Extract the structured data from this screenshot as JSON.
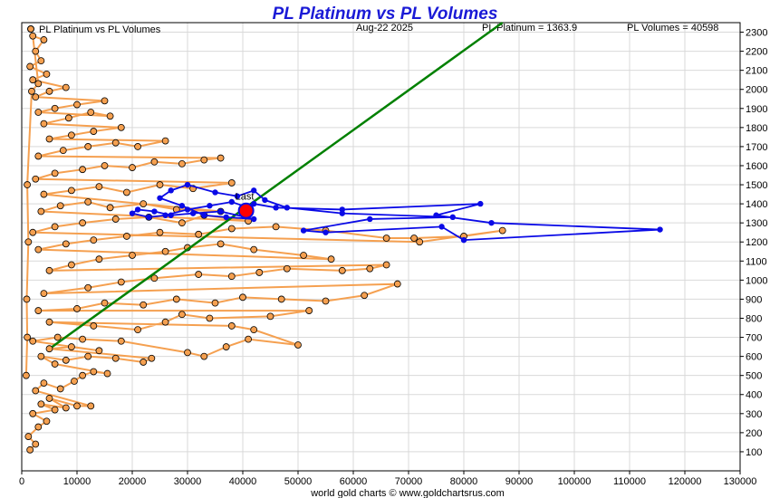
{
  "chart_data": {
    "type": "scatter",
    "title": "PL Platinum vs PL Volumes",
    "legend": {
      "label": "PL Platinum vs PL Volumes",
      "placement": "top-left"
    },
    "header": {
      "date": "Aug-22  2025",
      "platinum": "PL Platinum = 1363.9",
      "volumes": "PL Volumes = 40598"
    },
    "footer": "world gold charts © www.goldchartsrus.com",
    "last_label": "Last",
    "xlim": [
      0,
      130000
    ],
    "ylim": [
      0,
      2350
    ],
    "x_ticks": [
      "0",
      "10000",
      "20000",
      "30000",
      "40000",
      "50000",
      "60000",
      "70000",
      "80000",
      "90000",
      "100000",
      "110000",
      "120000",
      "130000"
    ],
    "y_ticks": [
      "100",
      "200",
      "300",
      "400",
      "500",
      "600",
      "700",
      "800",
      "900",
      "1000",
      "1100",
      "1200",
      "1300",
      "1400",
      "1500",
      "1600",
      "1700",
      "1800",
      "1900",
      "2000",
      "2100",
      "2200",
      "2300"
    ],
    "grid": true,
    "colors": {
      "history": "#f5a050",
      "history_edge": "#000000",
      "recent": "#0a0ae6",
      "trend": "#008000",
      "last": "#ff0000",
      "title": "#1a1ad6"
    },
    "trend_line": {
      "x": [
        5500,
        87000
      ],
      "y": [
        650,
        2350
      ]
    },
    "history_series": {
      "name": "PL Platinum vs PL Volumes",
      "points": [
        [
          1500,
          110
        ],
        [
          2500,
          140
        ],
        [
          1200,
          180
        ],
        [
          3000,
          230
        ],
        [
          4500,
          260
        ],
        [
          2000,
          300
        ],
        [
          6000,
          320
        ],
        [
          3500,
          350
        ],
        [
          8000,
          330
        ],
        [
          5000,
          380
        ],
        [
          10000,
          340
        ],
        [
          12500,
          340
        ],
        [
          2500,
          420
        ],
        [
          4000,
          460
        ],
        [
          7000,
          430
        ],
        [
          9500,
          470
        ],
        [
          11000,
          500
        ],
        [
          13000,
          520
        ],
        [
          15500,
          510
        ],
        [
          6000,
          560
        ],
        [
          3500,
          600
        ],
        [
          8000,
          580
        ],
        [
          12000,
          600
        ],
        [
          17000,
          590
        ],
        [
          22000,
          570
        ],
        [
          23500,
          590
        ],
        [
          5000,
          640
        ],
        [
          9000,
          650
        ],
        [
          14000,
          630
        ],
        [
          2000,
          680
        ],
        [
          6500,
          700
        ],
        [
          11000,
          690
        ],
        [
          18000,
          680
        ],
        [
          30000,
          620
        ],
        [
          33000,
          600
        ],
        [
          37000,
          650
        ],
        [
          41000,
          690
        ],
        [
          50000,
          660
        ],
        [
          42000,
          740
        ],
        [
          38000,
          760
        ],
        [
          5000,
          780
        ],
        [
          13000,
          760
        ],
        [
          21000,
          740
        ],
        [
          26000,
          780
        ],
        [
          29000,
          820
        ],
        [
          34000,
          800
        ],
        [
          45000,
          810
        ],
        [
          52000,
          840
        ],
        [
          3000,
          840
        ],
        [
          10000,
          850
        ],
        [
          15000,
          880
        ],
        [
          22000,
          870
        ],
        [
          28000,
          900
        ],
        [
          35000,
          880
        ],
        [
          40000,
          910
        ],
        [
          47000,
          900
        ],
        [
          55000,
          890
        ],
        [
          62000,
          920
        ],
        [
          68000,
          980
        ],
        [
          4000,
          930
        ],
        [
          12000,
          960
        ],
        [
          18000,
          990
        ],
        [
          24000,
          1010
        ],
        [
          32000,
          1030
        ],
        [
          38000,
          1020
        ],
        [
          43000,
          1040
        ],
        [
          48000,
          1060
        ],
        [
          58000,
          1050
        ],
        [
          63000,
          1060
        ],
        [
          66000,
          1080
        ],
        [
          5000,
          1050
        ],
        [
          9000,
          1080
        ],
        [
          14000,
          1110
        ],
        [
          20000,
          1130
        ],
        [
          26000,
          1150
        ],
        [
          30000,
          1170
        ],
        [
          36000,
          1190
        ],
        [
          42000,
          1160
        ],
        [
          51000,
          1130
        ],
        [
          56000,
          1110
        ],
        [
          3000,
          1160
        ],
        [
          8000,
          1190
        ],
        [
          13000,
          1210
        ],
        [
          19000,
          1230
        ],
        [
          25000,
          1250
        ],
        [
          32000,
          1240
        ],
        [
          38000,
          1270
        ],
        [
          46000,
          1280
        ],
        [
          55000,
          1260
        ],
        [
          66000,
          1220
        ],
        [
          71000,
          1220
        ],
        [
          80000,
          1230
        ],
        [
          87000,
          1260
        ],
        [
          72000,
          1200
        ],
        [
          2000,
          1250
        ],
        [
          6000,
          1280
        ],
        [
          11000,
          1300
        ],
        [
          17000,
          1320
        ],
        [
          23000,
          1330
        ],
        [
          29000,
          1300
        ],
        [
          33000,
          1340
        ],
        [
          41000,
          1310
        ],
        [
          3500,
          1360
        ],
        [
          7000,
          1390
        ],
        [
          12000,
          1410
        ],
        [
          16000,
          1380
        ],
        [
          22000,
          1400
        ],
        [
          28000,
          1370
        ],
        [
          36000,
          1360
        ],
        [
          4000,
          1450
        ],
        [
          9000,
          1470
        ],
        [
          14000,
          1490
        ],
        [
          19000,
          1460
        ],
        [
          25000,
          1500
        ],
        [
          31000,
          1480
        ],
        [
          38000,
          1510
        ],
        [
          2500,
          1530
        ],
        [
          6000,
          1560
        ],
        [
          11000,
          1580
        ],
        [
          15000,
          1600
        ],
        [
          20000,
          1590
        ],
        [
          24000,
          1620
        ],
        [
          29000,
          1610
        ],
        [
          33000,
          1630
        ],
        [
          36000,
          1640
        ],
        [
          3000,
          1650
        ],
        [
          7500,
          1680
        ],
        [
          12000,
          1700
        ],
        [
          17000,
          1720
        ],
        [
          21000,
          1700
        ],
        [
          26000,
          1730
        ],
        [
          5000,
          1740
        ],
        [
          9000,
          1760
        ],
        [
          13000,
          1780
        ],
        [
          18000,
          1800
        ],
        [
          4000,
          1820
        ],
        [
          8500,
          1850
        ],
        [
          12500,
          1880
        ],
        [
          16000,
          1860
        ],
        [
          3000,
          1880
        ],
        [
          6000,
          1900
        ],
        [
          10000,
          1920
        ],
        [
          15000,
          1940
        ],
        [
          2500,
          1960
        ],
        [
          5000,
          1990
        ],
        [
          8000,
          2010
        ],
        [
          2000,
          2050
        ],
        [
          4500,
          2080
        ],
        [
          1500,
          2120
        ],
        [
          3500,
          2150
        ],
        [
          2500,
          2200
        ],
        [
          4000,
          2260
        ],
        [
          2000,
          2280
        ],
        [
          3000,
          2030
        ],
        [
          1800,
          1990
        ],
        [
          1000,
          1500
        ],
        [
          1200,
          1200
        ],
        [
          900,
          900
        ],
        [
          1000,
          700
        ],
        [
          800,
          500
        ]
      ]
    },
    "recent_series": {
      "name": "recent",
      "points": [
        [
          40598,
          1363.9
        ],
        [
          42000,
          1400
        ],
        [
          46000,
          1380
        ],
        [
          58000,
          1370
        ],
        [
          83000,
          1400
        ],
        [
          75000,
          1340
        ],
        [
          85000,
          1300
        ],
        [
          115500,
          1265
        ],
        [
          80000,
          1210
        ],
        [
          76000,
          1280
        ],
        [
          55000,
          1250
        ],
        [
          51000,
          1260
        ],
        [
          63000,
          1320
        ],
        [
          78000,
          1330
        ],
        [
          58000,
          1350
        ],
        [
          48000,
          1380
        ],
        [
          44000,
          1420
        ],
        [
          42000,
          1470
        ],
        [
          39000,
          1440
        ],
        [
          35000,
          1460
        ],
        [
          30000,
          1500
        ],
        [
          27000,
          1470
        ],
        [
          25000,
          1430
        ],
        [
          29000,
          1390
        ],
        [
          33000,
          1340
        ],
        [
          37000,
          1330
        ],
        [
          42000,
          1320
        ],
        [
          36000,
          1360
        ],
        [
          31000,
          1350
        ],
        [
          27000,
          1340
        ],
        [
          24000,
          1360
        ],
        [
          21000,
          1370
        ],
        [
          20000,
          1350
        ],
        [
          23000,
          1330
        ],
        [
          26000,
          1340
        ],
        [
          30000,
          1370
        ],
        [
          34000,
          1390
        ],
        [
          38000,
          1410
        ],
        [
          41000,
          1380
        ],
        [
          40598,
          1363.9
        ]
      ]
    },
    "last_point": {
      "x": 40598,
      "y": 1363.9
    }
  }
}
